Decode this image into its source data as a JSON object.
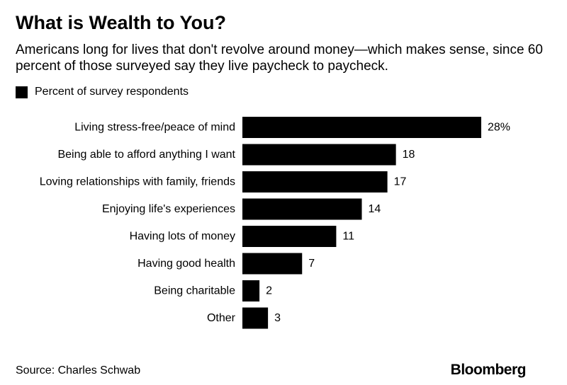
{
  "header": {
    "title": "What is Wealth to You?",
    "subtitle": "Americans long for lives that don't revolve around money—which makes sense, since 60 percent of those surveyed say they live paycheck to paycheck."
  },
  "legend": {
    "label": "Percent of survey respondents",
    "color": "#000000"
  },
  "chart_data": {
    "type": "bar",
    "orientation": "horizontal",
    "categories": [
      "Living stress-free/peace of mind",
      "Being able to afford anything I want",
      "Loving relationships with family, friends",
      "Enjoying life's experiences",
      "Having lots of money",
      "Having good health",
      "Being charitable",
      "Other"
    ],
    "values": [
      28,
      18,
      17,
      14,
      11,
      7,
      2,
      3
    ],
    "value_labels": [
      "28%",
      "18",
      "17",
      "14",
      "11",
      "7",
      "2",
      "3"
    ],
    "series": [
      {
        "name": "Percent of survey respondents",
        "values": [
          28,
          18,
          17,
          14,
          11,
          7,
          2,
          3
        ]
      }
    ],
    "xlim": [
      0,
      28
    ],
    "grid": false,
    "legend_position": "top-left",
    "bar_color": "#000000"
  },
  "footer": {
    "source": "Source: Charles Schwab",
    "brand": "Bloomberg"
  }
}
